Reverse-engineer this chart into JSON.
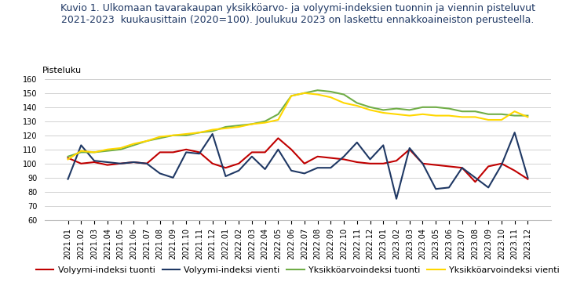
{
  "title_line1": "Kuvio 1. Ulkomaan tavarakaupan yksikköarvo- ja volyymi-indeksien tuonnin ja viennin pisteluvut",
  "title_line2": "2021-2023  kuukausittain (2020=100). Joulukuu 2023 on laskettu ennakkoaineiston perusteella.",
  "ylabel": "Pisteluku",
  "ylim": [
    60,
    160
  ],
  "yticks": [
    60,
    70,
    80,
    90,
    100,
    110,
    120,
    130,
    140,
    150,
    160
  ],
  "labels": [
    "2021.01",
    "2021.02",
    "2021.03",
    "2021.04",
    "2021.05",
    "2021.06",
    "2021.07",
    "2021.08",
    "2021.09",
    "2021.10",
    "2021.11",
    "2021.12",
    "2022.01",
    "2022.02",
    "2022.03",
    "2022.04",
    "2022.05",
    "2022.06",
    "2022.07",
    "2022.08",
    "2022.09",
    "2022.10",
    "2022.11",
    "2022.12",
    "2023.01",
    "2023.02",
    "2023.03",
    "2023.04",
    "2023.05",
    "2023.06",
    "2023.07",
    "2023.08",
    "2023.09",
    "2023.10",
    "2023.11",
    "2023.12"
  ],
  "volyymi_tuonti": [
    104,
    100,
    101,
    99,
    100,
    101,
    100,
    108,
    108,
    110,
    108,
    100,
    97,
    100,
    108,
    108,
    118,
    110,
    100,
    105,
    104,
    103,
    101,
    100,
    100,
    102,
    110,
    100,
    99,
    98,
    97,
    87,
    98,
    100,
    95,
    89
  ],
  "volyymi_vienti": [
    89,
    113,
    102,
    101,
    100,
    101,
    100,
    93,
    90,
    108,
    107,
    121,
    91,
    95,
    105,
    96,
    110,
    95,
    93,
    97,
    97,
    105,
    115,
    103,
    113,
    75,
    111,
    100,
    82,
    83,
    97,
    90,
    83,
    99,
    122,
    90
  ],
  "yksikkoarvo_tuonti": [
    105,
    108,
    108,
    109,
    110,
    113,
    116,
    118,
    120,
    120,
    122,
    123,
    126,
    127,
    128,
    130,
    135,
    148,
    150,
    152,
    151,
    149,
    143,
    140,
    138,
    139,
    138,
    140,
    140,
    139,
    137,
    137,
    135,
    135,
    134,
    134
  ],
  "yksikkoarvo_vienti": [
    103,
    109,
    108,
    110,
    111,
    114,
    116,
    119,
    120,
    121,
    122,
    124,
    125,
    126,
    128,
    129,
    131,
    148,
    150,
    149,
    147,
    143,
    141,
    138,
    136,
    135,
    134,
    135,
    134,
    134,
    133,
    133,
    131,
    131,
    137,
    133
  ],
  "color_volyymi_tuonti": "#C00000",
  "color_volyymi_vienti": "#1F3864",
  "color_yksikkoarvo_tuonti": "#70AD47",
  "color_yksikkoarvo_vienti": "#FFD700",
  "legend_labels": [
    "Volyymi-indeksi tuonti",
    "Volyymi-indeksi vienti",
    "Yksikköarvoindeksi tuonti",
    "Yksikköarvoindeksi vienti"
  ],
  "title_color": "#1F3864",
  "title_fontsize": 9.0,
  "ylabel_fontsize": 8,
  "tick_fontsize": 7.0,
  "legend_fontsize": 8,
  "figure_facecolor": "#FFFFFF",
  "axes_facecolor": "#FFFFFF",
  "grid_color": "#BFBFBF",
  "linewidth": 1.5
}
